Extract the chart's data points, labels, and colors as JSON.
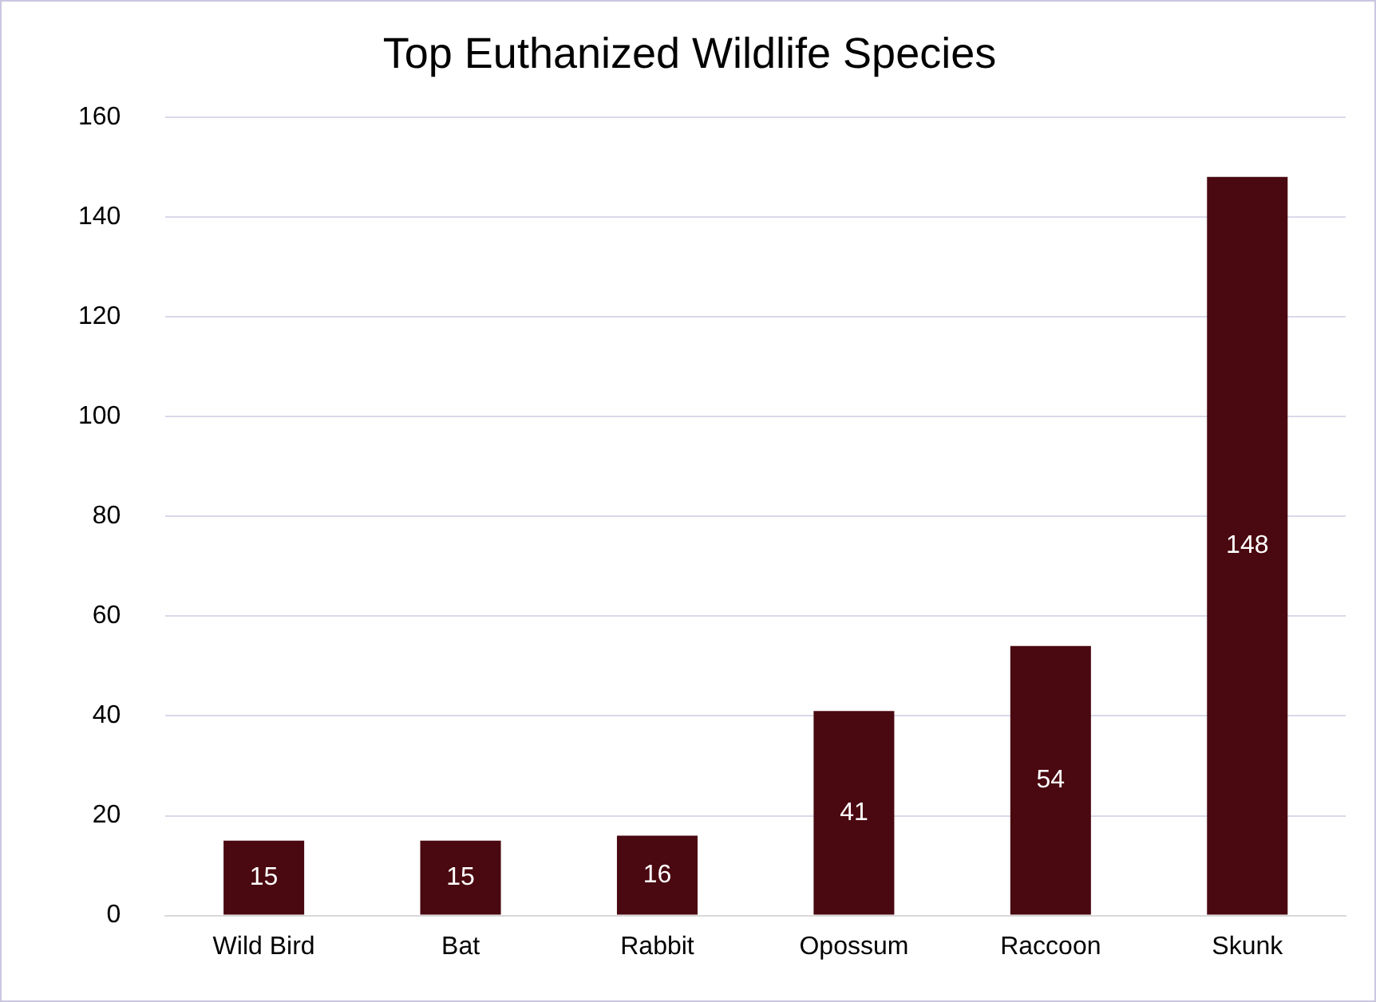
{
  "chart_data": {
    "type": "bar",
    "title": "Top Euthanized Wildlife Species",
    "categories": [
      "Wild Bird",
      "Bat",
      "Rabbit",
      "Opossum",
      "Raccoon",
      "Skunk"
    ],
    "values": [
      15,
      15,
      16,
      41,
      54,
      148
    ],
    "color": "#4a0810",
    "ylim": [
      0,
      160
    ],
    "yticks": [
      0,
      20,
      40,
      60,
      80,
      100,
      120,
      140,
      160
    ],
    "grid": "y",
    "data_labels": true
  }
}
